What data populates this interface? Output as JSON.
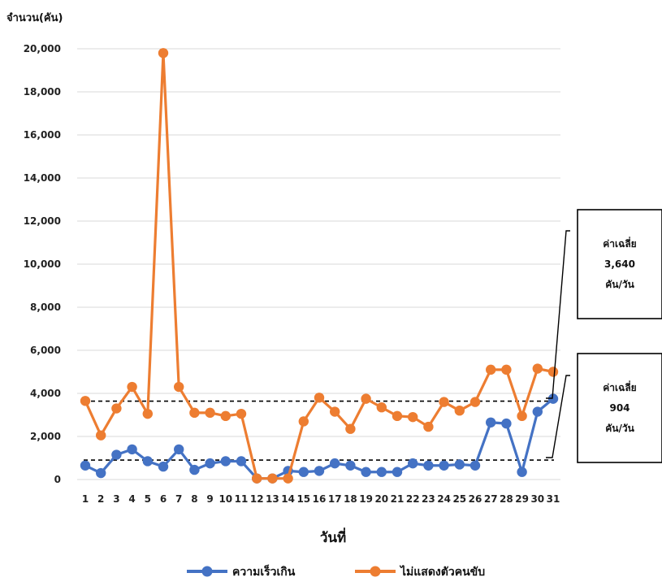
{
  "chart_data": {
    "type": "line",
    "ylabel": "จำนวน(คัน)",
    "xlabel": "วันที่",
    "ylim": [
      0,
      20000
    ],
    "ytick_values": [
      0,
      2000,
      4000,
      6000,
      8000,
      10000,
      12000,
      14000,
      16000,
      18000,
      20000
    ],
    "ytick_labels": [
      "0",
      "2,000",
      "4,000",
      "6,000",
      "8,000",
      "10,000",
      "12,000",
      "14,000",
      "16,000",
      "18,000",
      "20,000"
    ],
    "categories": [
      "1",
      "2",
      "3",
      "4",
      "5",
      "6",
      "7",
      "8",
      "9",
      "10",
      "11",
      "12",
      "13",
      "14",
      "15",
      "16",
      "17",
      "18",
      "19",
      "20",
      "21",
      "22",
      "23",
      "24",
      "25",
      "26",
      "27",
      "28",
      "29",
      "30",
      "31"
    ],
    "grid": true,
    "legend_position": "bottom",
    "series": [
      {
        "name": "ความเร็วเกิน",
        "color": "#4472C4",
        "values": [
          650,
          300,
          1150,
          1400,
          850,
          600,
          1400,
          450,
          750,
          850,
          850,
          50,
          50,
          400,
          350,
          400,
          750,
          650,
          350,
          350,
          350,
          750,
          650,
          650,
          700,
          650,
          2650,
          2600,
          350,
          3150,
          3750
        ]
      },
      {
        "name": "ไม่แสดงตัวคนขับ",
        "color": "#ED7D31",
        "values": [
          3650,
          2050,
          3300,
          4300,
          3050,
          19800,
          4300,
          3100,
          3100,
          2950,
          3050,
          50,
          50,
          50,
          2700,
          3800,
          3150,
          2350,
          3750,
          3350,
          2950,
          2900,
          2450,
          3600,
          3200,
          3600,
          5100,
          5100,
          2950,
          5150,
          5000
        ]
      }
    ],
    "reference_lines": [
      {
        "value": 3640,
        "line_label": "ค่าเฉลี่ย",
        "amount": "3,640",
        "unit": "คัน/วัน"
      },
      {
        "value": 904,
        "line_label": "ค่าเฉลี่ย",
        "amount": "904",
        "unit": "คัน/วัน"
      }
    ]
  }
}
